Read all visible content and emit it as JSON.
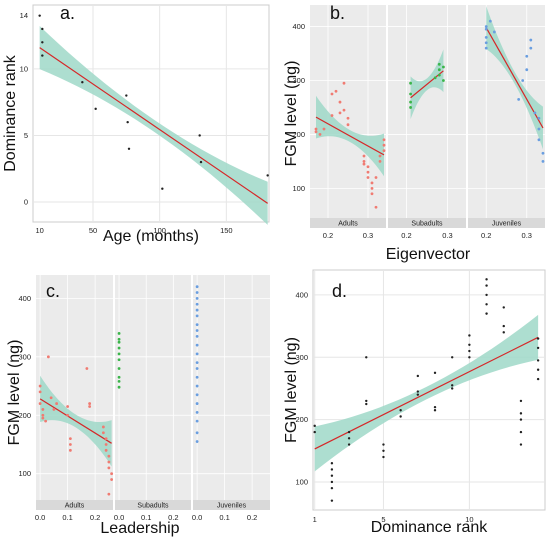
{
  "chart_data": [
    {
      "panel": "a.",
      "type": "scatter",
      "xlabel": "Age (months)",
      "ylabel": "Dominance rank",
      "xticks": [
        "10",
        "50",
        "100",
        "150"
      ],
      "yticks": [
        "0",
        "5",
        "10",
        "14"
      ],
      "xlim": [
        5,
        182
      ],
      "ylim": [
        -1.5,
        14.8
      ],
      "points": [
        [
          10,
          14
        ],
        [
          12,
          13
        ],
        [
          12,
          11
        ],
        [
          12,
          12
        ],
        [
          42,
          9
        ],
        [
          52,
          7
        ],
        [
          75,
          8
        ],
        [
          76,
          6
        ],
        [
          77,
          4
        ],
        [
          102,
          1
        ],
        [
          130,
          5
        ],
        [
          131,
          3
        ],
        [
          181,
          2
        ]
      ],
      "fit": [
        [
          10,
          11.6
        ],
        [
          181,
          -0.1
        ]
      ],
      "grid": "light grey",
      "series_color": "#222222"
    },
    {
      "panel": "b.",
      "type": "scatter",
      "xlabel": "Eigenvector",
      "ylabel": "FGM level (ng)",
      "yticks": [
        "100",
        "200",
        "300",
        "400"
      ],
      "ylim": [
        45,
        440
      ],
      "facets": [
        {
          "label": "Adults",
          "xticks": [
            "0.2",
            "0.3"
          ],
          "xlim": [
            0.155,
            0.345
          ],
          "color": "#f07b72",
          "points": [
            [
              0.17,
              205
            ],
            [
              0.17,
              210
            ],
            [
              0.18,
              200
            ],
            [
              0.19,
              210
            ],
            [
              0.21,
              235
            ],
            [
              0.21,
              275
            ],
            [
              0.22,
              280
            ],
            [
              0.23,
              240
            ],
            [
              0.23,
              260
            ],
            [
              0.24,
              295
            ],
            [
              0.24,
              245
            ],
            [
              0.25,
              230
            ],
            [
              0.25,
              218
            ],
            [
              0.29,
              160
            ],
            [
              0.29,
              150
            ],
            [
              0.29,
              145
            ],
            [
              0.3,
              140
            ],
            [
              0.3,
              130
            ],
            [
              0.3,
              120
            ],
            [
              0.31,
              110
            ],
            [
              0.31,
              90
            ],
            [
              0.31,
              100
            ],
            [
              0.32,
              65
            ],
            [
              0.32,
              120
            ],
            [
              0.33,
              150
            ],
            [
              0.33,
              160
            ],
            [
              0.34,
              170
            ],
            [
              0.34,
              180
            ],
            [
              0.34,
              190
            ]
          ],
          "fit": [
            [
              0.17,
              232
            ],
            [
              0.34,
              162
            ]
          ]
        },
        {
          "label": "Subadults",
          "xticks": [
            "0.2",
            "0.3"
          ],
          "xlim": [
            0.155,
            0.345
          ],
          "color": "#3bb54a",
          "points": [
            [
              0.21,
              250
            ],
            [
              0.21,
              260
            ],
            [
              0.21,
              275
            ],
            [
              0.21,
              295
            ],
            [
              0.27,
              305
            ],
            [
              0.28,
              310
            ],
            [
              0.28,
              320
            ],
            [
              0.28,
              330
            ],
            [
              0.29,
              300
            ],
            [
              0.29,
              325
            ]
          ],
          "fit": [
            [
              0.21,
              268
            ],
            [
              0.29,
              318
            ]
          ]
        },
        {
          "label": "Juveniles",
          "xticks": [
            "0.2",
            "0.3"
          ],
          "xlim": [
            0.155,
            0.345
          ],
          "color": "#6a9ee0",
          "points": [
            [
              0.2,
              360
            ],
            [
              0.2,
              370
            ],
            [
              0.2,
              380
            ],
            [
              0.2,
              395
            ],
            [
              0.2,
              400
            ],
            [
              0.21,
              410
            ],
            [
              0.22,
              390
            ],
            [
              0.28,
              265
            ],
            [
              0.29,
              300
            ],
            [
              0.3,
              320
            ],
            [
              0.3,
              345
            ],
            [
              0.31,
              360
            ],
            [
              0.31,
              375
            ],
            [
              0.32,
              240
            ],
            [
              0.33,
              230
            ],
            [
              0.33,
              210
            ],
            [
              0.33,
              190
            ],
            [
              0.34,
              150
            ],
            [
              0.34,
              165
            ]
          ],
          "fit": [
            [
              0.2,
              398
            ],
            [
              0.34,
              212
            ]
          ]
        }
      ],
      "fit_color": "#d62728",
      "band_color": "#9fd8c8"
    },
    {
      "panel": "c.",
      "type": "scatter",
      "xlabel": "Leadership",
      "ylabel": "FGM level (ng)",
      "yticks": [
        "100",
        "200",
        "300",
        "400"
      ],
      "ylim": [
        55,
        440
      ],
      "facets": [
        {
          "label": "Adults",
          "xticks": [
            "0.0",
            "0.1",
            "0.2"
          ],
          "xlim": [
            -0.015,
            0.265
          ],
          "color": "#f07b72",
          "points": [
            [
              0,
              240
            ],
            [
              0,
              250
            ],
            [
              0,
              220
            ],
            [
              0.01,
              210
            ],
            [
              0.01,
              200
            ],
            [
              0.01,
              195
            ],
            [
              0.02,
              190
            ],
            [
              0.03,
              300
            ],
            [
              0.04,
              230
            ],
            [
              0.05,
              210
            ],
            [
              0.06,
              220
            ],
            [
              0.1,
              215
            ],
            [
              0.1,
              200
            ],
            [
              0.11,
              160
            ],
            [
              0.11,
              150
            ],
            [
              0.11,
              140
            ],
            [
              0.17,
              280
            ],
            [
              0.18,
              220
            ],
            [
              0.18,
              215
            ],
            [
              0.23,
              180
            ],
            [
              0.23,
              170
            ],
            [
              0.24,
              160
            ],
            [
              0.24,
              150
            ],
            [
              0.24,
              140
            ],
            [
              0.25,
              130
            ],
            [
              0.25,
              120
            ],
            [
              0.25,
              110
            ],
            [
              0.26,
              100
            ],
            [
              0.25,
              65
            ],
            [
              0.26,
              90
            ]
          ],
          "fit": [
            [
              0,
              228
            ],
            [
              0.26,
              152
            ]
          ]
        },
        {
          "label": "Subadults",
          "xticks": [
            "0.0",
            "0.1",
            "0.2"
          ],
          "xlim": [
            -0.015,
            0.265
          ],
          "color": "#3bb54a",
          "points": [
            [
              0,
              330
            ],
            [
              0,
              325
            ],
            [
              0,
              315
            ],
            [
              0,
              305
            ],
            [
              0,
              295
            ],
            [
              0,
              280
            ],
            [
              0,
              265
            ],
            [
              0,
              258
            ],
            [
              0,
              248
            ],
            [
              0,
              340
            ]
          ],
          "fit": null
        },
        {
          "label": "Juveniles",
          "xticks": [
            "0.0",
            "0.1",
            "0.2"
          ],
          "xlim": [
            -0.015,
            0.265
          ],
          "color": "#6a9ee0",
          "points": [
            [
              0,
              420
            ],
            [
              0,
              410
            ],
            [
              0,
              400
            ],
            [
              0,
              390
            ],
            [
              0,
              380
            ],
            [
              0,
              370
            ],
            [
              0,
              355
            ],
            [
              0,
              345
            ],
            [
              0,
              335
            ],
            [
              0,
              320
            ],
            [
              0,
              305
            ],
            [
              0,
              290
            ],
            [
              0,
              280
            ],
            [
              0,
              265
            ],
            [
              0,
              250
            ],
            [
              0,
              235
            ],
            [
              0,
              220
            ],
            [
              0,
              205
            ],
            [
              0,
              190
            ],
            [
              0,
              170
            ],
            [
              0,
              155
            ]
          ],
          "fit": null
        }
      ],
      "fit_color": "#d62728",
      "band_color": "#9fd8c8"
    },
    {
      "panel": "d.",
      "type": "scatter",
      "xlabel": "Dominance rank",
      "ylabel": "FGM level (ng)",
      "xticks": [
        "1",
        "5",
        "10"
      ],
      "yticks": [
        "100",
        "200",
        "300",
        "400"
      ],
      "xlim": [
        0.9,
        14.4
      ],
      "ylim": [
        55,
        440
      ],
      "points": [
        [
          1,
          190
        ],
        [
          1,
          180
        ],
        [
          2,
          130
        ],
        [
          2,
          120
        ],
        [
          2,
          110
        ],
        [
          2,
          100
        ],
        [
          2,
          90
        ],
        [
          2,
          70
        ],
        [
          3,
          180
        ],
        [
          3,
          170
        ],
        [
          3,
          160
        ],
        [
          4,
          300
        ],
        [
          4,
          230
        ],
        [
          4,
          225
        ],
        [
          5,
          160
        ],
        [
          5,
          150
        ],
        [
          5,
          140
        ],
        [
          6,
          215
        ],
        [
          6,
          205
        ],
        [
          7,
          270
        ],
        [
          7,
          245
        ],
        [
          7,
          240
        ],
        [
          8,
          275
        ],
        [
          8,
          220
        ],
        [
          8,
          215
        ],
        [
          9,
          300
        ],
        [
          9,
          255
        ],
        [
          9,
          250
        ],
        [
          10,
          335
        ],
        [
          10,
          320
        ],
        [
          10,
          310
        ],
        [
          10,
          300
        ],
        [
          11,
          425
        ],
        [
          11,
          415
        ],
        [
          11,
          400
        ],
        [
          11,
          385
        ],
        [
          11,
          370
        ],
        [
          12,
          380
        ],
        [
          12,
          350
        ],
        [
          12,
          340
        ],
        [
          13,
          230
        ],
        [
          13,
          210
        ],
        [
          13,
          200
        ],
        [
          13,
          180
        ],
        [
          13,
          160
        ],
        [
          14,
          330
        ],
        [
          14,
          315
        ],
        [
          14,
          295
        ],
        [
          14,
          280
        ],
        [
          14,
          265
        ]
      ],
      "fit": [
        [
          1,
          153
        ],
        [
          14,
          332
        ]
      ],
      "series_color": "#222222",
      "fit_color": "#d62728",
      "band_color": "#9fd8c8"
    }
  ]
}
